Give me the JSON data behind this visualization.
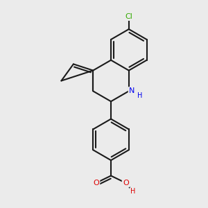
{
  "background_color": "#ebebeb",
  "bond_color": "#1a1a1a",
  "atom_colors": {
    "N": "#0000ee",
    "O": "#dd0000",
    "Cl": "#33aa00",
    "C": "#1a1a1a"
  },
  "figsize": [
    3.0,
    3.0
  ],
  "dpi": 100
}
